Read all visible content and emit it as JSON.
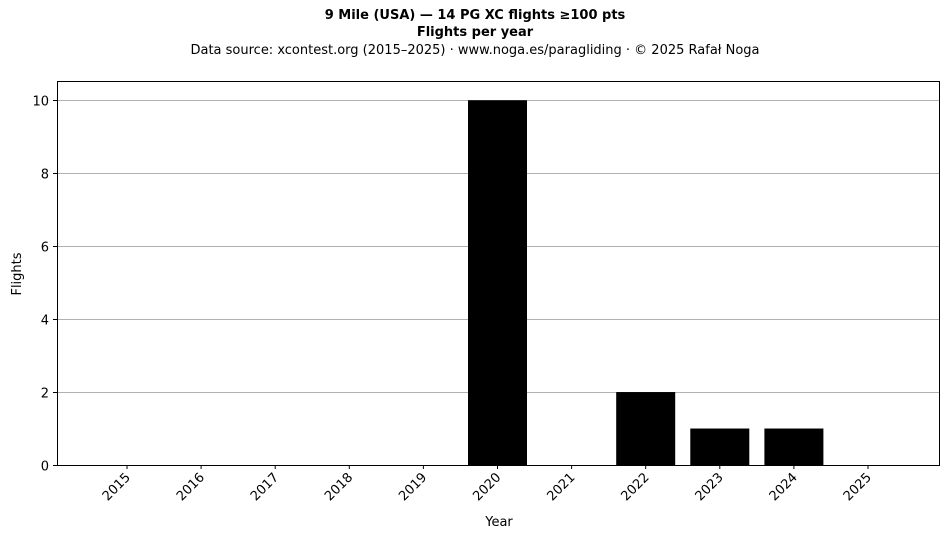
{
  "header": {
    "title": "9 Mile (USA)  —  14 PG XC flights ≥100 pts",
    "subtitle": "Flights per year",
    "source": "Data source: xcontest.org (2015–2025)  ·  www.noga.es/paragliding  ·  © 2025 Rafał Noga"
  },
  "chart_data": {
    "type": "bar",
    "title": "9 Mile (USA)  —  14 PG XC flights ≥100 pts",
    "subtitle": "Flights per year",
    "xlabel": "Year",
    "ylabel": "Flights",
    "categories": [
      "2015",
      "2016",
      "2017",
      "2018",
      "2019",
      "2020",
      "2021",
      "2022",
      "2023",
      "2024",
      "2025"
    ],
    "values": [
      0,
      0,
      0,
      0,
      0,
      10,
      0,
      2,
      1,
      1,
      0
    ],
    "ylim": [
      0,
      10.5
    ],
    "yticks": [
      0,
      2,
      4,
      6,
      8,
      10
    ],
    "grid": "horizontal",
    "bar_color": "#000000",
    "grid_color": "#b0b0b0"
  }
}
